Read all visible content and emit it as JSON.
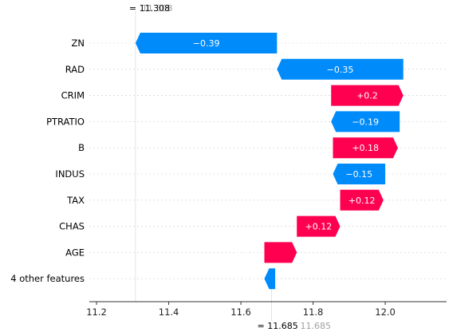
{
  "chart_data": {
    "type": "waterfall",
    "top_annotation": {
      "prefix": "= ",
      "value": "11.308",
      "ghost": "11.308"
    },
    "bottom_annotation": {
      "prefix": "= ",
      "value": "11.685",
      "ghost": "11.685"
    },
    "base_value": 11.308,
    "final_value": 11.685,
    "xlim": [
      11.18,
      12.17
    ],
    "xticks": [
      11.2,
      11.4,
      11.6,
      11.8,
      12.0
    ],
    "xtick_labels": [
      "11.2",
      "11.4",
      "11.6",
      "11.8",
      "12.0"
    ],
    "features": [
      {
        "name": "ZN",
        "start": 11.308,
        "end": 11.7,
        "value": -0.39,
        "label": "−0.39"
      },
      {
        "name": "RAD",
        "start": 11.7,
        "end": 12.05,
        "value": -0.35,
        "label": "−0.35"
      },
      {
        "name": "CRIM",
        "start": 11.85,
        "end": 12.05,
        "value": 0.2,
        "label": "+0.2"
      },
      {
        "name": "PTRATIO",
        "start": 11.85,
        "end": 12.04,
        "value": -0.19,
        "label": "−0.19"
      },
      {
        "name": "B",
        "start": 11.855,
        "end": 12.035,
        "value": 0.18,
        "label": "+0.18"
      },
      {
        "name": "INDUS",
        "start": 11.855,
        "end": 12.0,
        "value": -0.15,
        "label": "−0.15"
      },
      {
        "name": "TAX",
        "start": 11.875,
        "end": 11.995,
        "value": 0.12,
        "label": "+0.12"
      },
      {
        "name": "CHAS",
        "start": 11.755,
        "end": 11.875,
        "value": 0.12,
        "label": "+0.12"
      },
      {
        "name": "AGE",
        "start": 11.665,
        "end": 11.755,
        "value": 0.09,
        "label": "+0.09"
      },
      {
        "name": "4 other features",
        "start": 11.665,
        "end": 11.695,
        "value": -0.03,
        "label": "−0.03"
      }
    ],
    "colors": {
      "positive": "#ff0051",
      "negative": "#008bfb",
      "ghost": "#a0a0a0",
      "grid": "#cccccc"
    }
  }
}
